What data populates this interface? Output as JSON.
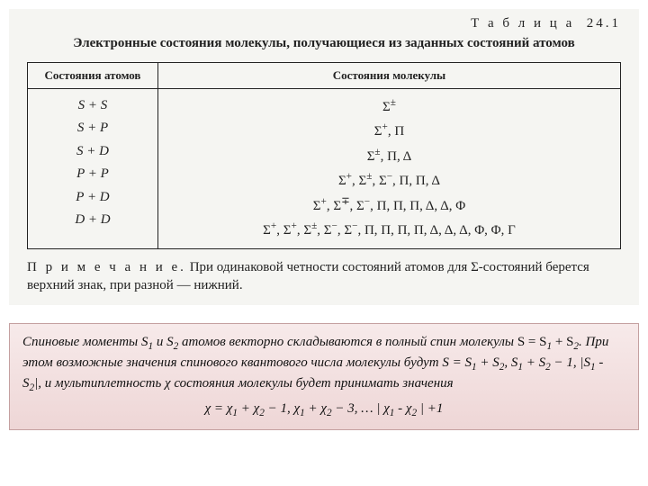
{
  "scan": {
    "table_label": "Т а б л и ц а  24.1",
    "title": "Электронные состояния молекулы, получающиеся из заданных состояний атомов",
    "columns": {
      "atom": "Состояния атомов",
      "mol": "Состояния молекулы"
    },
    "rows": [
      {
        "atom": "S + S",
        "mol": "Σ<sup>±</sup>"
      },
      {
        "atom": "S + P",
        "mol": "Σ<sup>+</sup>, Π"
      },
      {
        "atom": "S + D",
        "mol": "Σ<sup>±</sup>, Π, Δ"
      },
      {
        "atom": "P + P",
        "mol": "Σ<sup>+</sup>, Σ<sup>±</sup>, Σ<sup>−</sup>, Π, Π, Δ"
      },
      {
        "atom": "P + D",
        "mol": "Σ<sup>+</sup>, Σ<sup>∓</sup>, Σ<sup>−</sup>, Π, Π, Π, Δ, Δ, Φ"
      },
      {
        "atom": "D + D",
        "mol": "Σ<sup>+</sup>, Σ<sup>+</sup>, Σ<sup>±</sup>, Σ<sup>−</sup>, Σ<sup>−</sup>, Π, Π, Π, Π, Δ, Δ, Δ, Φ, Φ, Γ"
      }
    ],
    "note_label": "П р и м е ч а н и е.",
    "note_text": "При одинаковой четности состояний атомов для Σ-состояний берется верхний знак, при разной — нижний."
  },
  "caption": {
    "p1a": "Спиновые моменты S",
    "p1b": " и S",
    "p1c": " атомов векторно складываются в полный спин молекулы ",
    "p1d": "S = S",
    "p1e": " + S",
    "p1f": ". При этом возможные значения спинового квантового числа молекулы будут S = S",
    "p1g": " + S",
    "p1h": ", S",
    "p1i": " + S",
    "p1j": " − 1, |S",
    "p1k": " - S",
    "p1l": "|, и мультиплетность χ состояния молекулы будет принимать значения",
    "formula": "χ = χ<sub>1</sub> + χ<sub>2</sub> − 1, χ<sub>1</sub> + χ<sub>2</sub> − 3, … | χ<sub>1</sub> - χ<sub>2</sub> | +1",
    "sub1": "1",
    "sub2": "2"
  },
  "colors": {
    "scan_bg": "#f5f5f2",
    "text": "#222222",
    "caption_bg_top": "#f7eaea",
    "caption_bg_bottom": "#eed6d6",
    "caption_border": "#c4a0a0"
  }
}
